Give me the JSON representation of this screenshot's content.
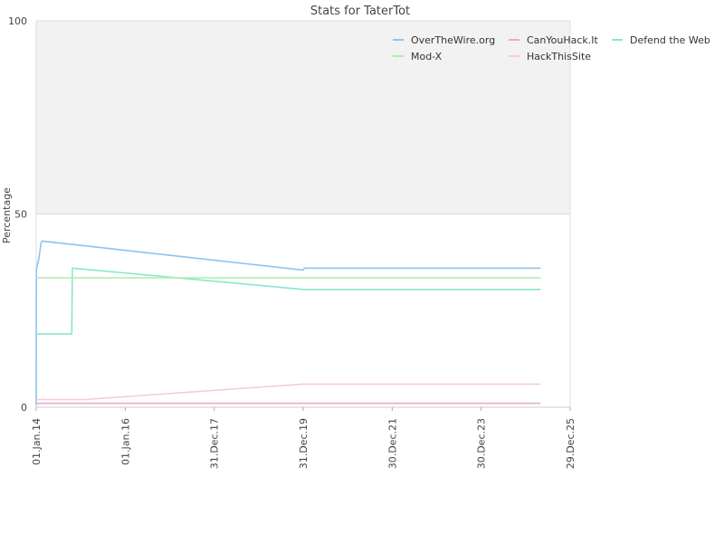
{
  "chart_data": {
    "type": "line",
    "title": "Stats for TaterTot",
    "xlabel": "",
    "ylabel": "Percentage",
    "ylim": [
      0,
      100
    ],
    "xlim": [
      "2014-01-01",
      "2025-12-29"
    ],
    "y_ticks": [
      "0",
      "50",
      "100"
    ],
    "x_ticks": [
      {
        "date": "2014-01-01",
        "label": "01.Jan.14"
      },
      {
        "date": "2016-01-01",
        "label": "01.Jan.16"
      },
      {
        "date": "2017-12-31",
        "label": "31.Dec.17"
      },
      {
        "date": "2019-12-31",
        "label": "31.Dec.19"
      },
      {
        "date": "2021-12-30",
        "label": "30.Dec.21"
      },
      {
        "date": "2023-12-30",
        "label": "30.Dec.23"
      },
      {
        "date": "2025-12-29",
        "label": "29.Dec.25"
      }
    ],
    "shaded_band": {
      "from": 50,
      "to": 100,
      "color": "#f2f2f2"
    },
    "legend_position": "top-right",
    "series": [
      {
        "name": "OverTheWire.org",
        "color": "#8ec3ee",
        "points": [
          {
            "x": "2014-01-01",
            "y": 0.5
          },
          {
            "x": "2014-01-02",
            "y": 28
          },
          {
            "x": "2014-01-03",
            "y": 36
          },
          {
            "x": "2014-01-20",
            "y": 38
          },
          {
            "x": "2014-02-10",
            "y": 42.5
          },
          {
            "x": "2014-02-20",
            "y": 43
          },
          {
            "x": "2019-12-31",
            "y": 35.5
          },
          {
            "x": "2020-01-10",
            "y": 36
          },
          {
            "x": "2025-05-01",
            "y": 36
          }
        ]
      },
      {
        "name": "CanYouHack.It",
        "color": "#f0a8c8",
        "points": [
          {
            "x": "2014-01-01",
            "y": 1
          },
          {
            "x": "2025-05-01",
            "y": 1
          }
        ]
      },
      {
        "name": "Defend the Web",
        "color": "#88e8c8",
        "points": [
          {
            "x": "2014-01-01",
            "y": 19
          },
          {
            "x": "2014-10-20",
            "y": 19
          },
          {
            "x": "2014-10-25",
            "y": 36
          },
          {
            "x": "2019-12-31",
            "y": 30.5
          },
          {
            "x": "2025-05-01",
            "y": 30.5
          }
        ]
      },
      {
        "name": "Mod-X",
        "color": "#b0ecb0",
        "points": [
          {
            "x": "2014-01-01",
            "y": 33.5
          },
          {
            "x": "2025-05-01",
            "y": 33.5
          }
        ]
      },
      {
        "name": "HackThisSite",
        "color": "#f5cece",
        "points": [
          {
            "x": "2014-01-01",
            "y": 2
          },
          {
            "x": "2015-02-01",
            "y": 2
          },
          {
            "x": "2020-01-01",
            "y": 6
          },
          {
            "x": "2025-05-01",
            "y": 6
          }
        ]
      }
    ]
  }
}
